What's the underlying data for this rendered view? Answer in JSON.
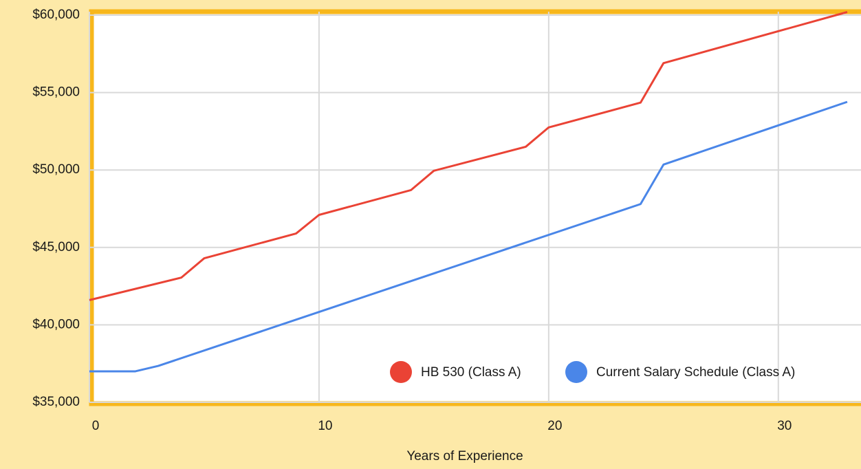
{
  "chart_data": {
    "type": "line",
    "x_label": "Years of Experience",
    "xlim": [
      0,
      33.6
    ],
    "ylim": [
      35000,
      60000
    ],
    "xticks": [
      0,
      10,
      20,
      30
    ],
    "yticks": [
      {
        "value": 35000,
        "label": "$35,000"
      },
      {
        "value": 40000,
        "label": "$40,000"
      },
      {
        "value": 45000,
        "label": "$45,000"
      },
      {
        "value": 50000,
        "label": "$50,000"
      },
      {
        "value": 55000,
        "label": "$55,000"
      },
      {
        "value": 60000,
        "label": "$60,000"
      }
    ],
    "grid": true,
    "legend": "bottom-right",
    "series": [
      {
        "name": "HB 530 (Class A)",
        "color": "#ea4335",
        "x": [
          0,
          4,
          5,
          9,
          10,
          14,
          15,
          19,
          20,
          24,
          25,
          33
        ],
        "values": [
          41600,
          43050,
          44300,
          45900,
          47100,
          48700,
          49950,
          51500,
          52750,
          54350,
          56900,
          60200
        ]
      },
      {
        "name": "Current Salary Schedule (Class A)",
        "color": "#4a86e8",
        "x": [
          0,
          2,
          3,
          24,
          25,
          33
        ],
        "values": [
          37000,
          37000,
          37350,
          47800,
          50350,
          54400
        ]
      }
    ]
  }
}
